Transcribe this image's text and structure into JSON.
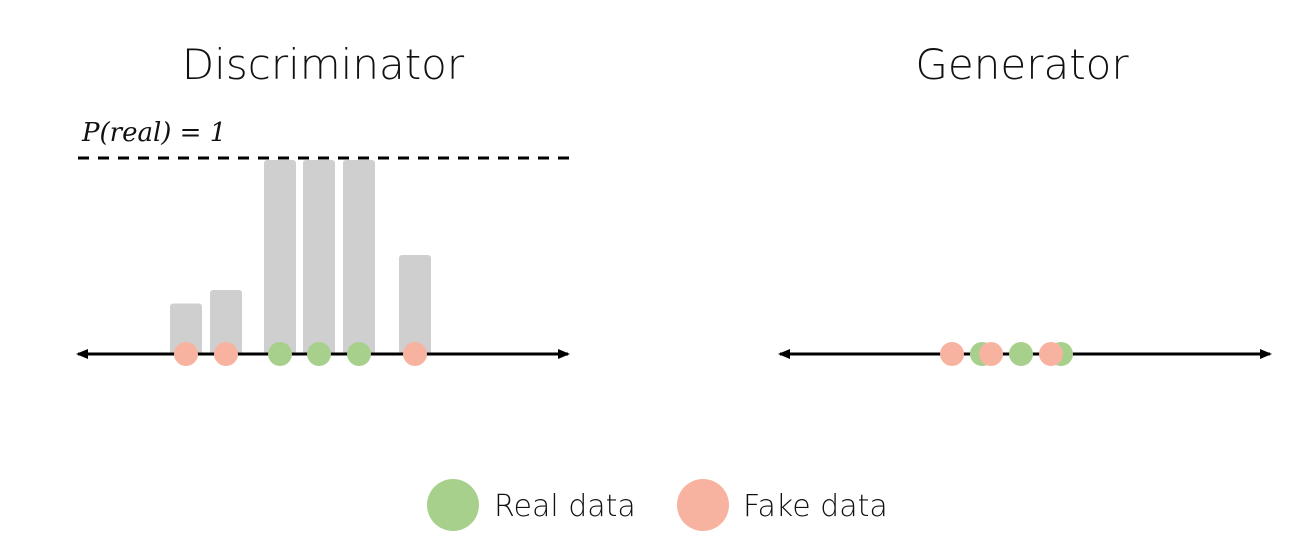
{
  "panels": {
    "discriminator": {
      "title": "Discriminator",
      "threshold_label": "P(real) = 1",
      "bars": [
        {
          "kind": "fake",
          "value": 0.26
        },
        {
          "kind": "fake",
          "value": 0.33
        },
        {
          "kind": "real",
          "value": 1.0
        },
        {
          "kind": "real",
          "value": 1.0
        },
        {
          "kind": "real",
          "value": 1.0
        },
        {
          "kind": "fake",
          "value": 0.51
        }
      ]
    },
    "generator": {
      "title": "Generator",
      "points": [
        {
          "kind": "fake"
        },
        {
          "kind": "real"
        },
        {
          "kind": "fake"
        },
        {
          "kind": "real"
        },
        {
          "kind": "real"
        },
        {
          "kind": "fake"
        }
      ]
    }
  },
  "legend": {
    "real_label": "Real data",
    "fake_label": "Fake data"
  },
  "colors": {
    "real": "#a8d08d",
    "fake": "#f8b2a0",
    "bar": "#d0cfd0",
    "axis": "#000000"
  }
}
